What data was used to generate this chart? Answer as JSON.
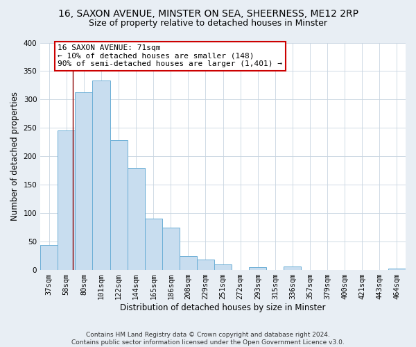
{
  "title": "16, SAXON AVENUE, MINSTER ON SEA, SHEERNESS, ME12 2RP",
  "subtitle": "Size of property relative to detached houses in Minster",
  "xlabel": "Distribution of detached houses by size in Minster",
  "ylabel": "Number of detached properties",
  "bar_labels": [
    "37sqm",
    "58sqm",
    "80sqm",
    "101sqm",
    "122sqm",
    "144sqm",
    "165sqm",
    "186sqm",
    "208sqm",
    "229sqm",
    "251sqm",
    "272sqm",
    "293sqm",
    "315sqm",
    "336sqm",
    "357sqm",
    "379sqm",
    "400sqm",
    "421sqm",
    "443sqm",
    "464sqm"
  ],
  "bar_values": [
    44,
    245,
    313,
    333,
    228,
    180,
    91,
    75,
    25,
    18,
    10,
    0,
    5,
    0,
    6,
    0,
    0,
    0,
    0,
    0,
    2
  ],
  "bar_color": "#c8ddef",
  "bar_edge_color": "#6aaed6",
  "vline_x_data": 1.35,
  "vline_color": "#8b0000",
  "annotation_text": "16 SAXON AVENUE: 71sqm\n← 10% of detached houses are smaller (148)\n90% of semi-detached houses are larger (1,401) →",
  "annotation_box_color": "white",
  "annotation_box_edge": "#cc0000",
  "ylim": [
    0,
    400
  ],
  "yticks": [
    0,
    50,
    100,
    150,
    200,
    250,
    300,
    350,
    400
  ],
  "background_color": "#e8eef4",
  "plot_bg_color": "white",
  "grid_color": "#c8d4e0",
  "footer_line1": "Contains HM Land Registry data © Crown copyright and database right 2024.",
  "footer_line2": "Contains public sector information licensed under the Open Government Licence v3.0.",
  "title_fontsize": 10,
  "subtitle_fontsize": 9,
  "xlabel_fontsize": 8.5,
  "ylabel_fontsize": 8.5,
  "tick_fontsize": 7.5,
  "annot_fontsize": 8,
  "footer_fontsize": 6.5
}
